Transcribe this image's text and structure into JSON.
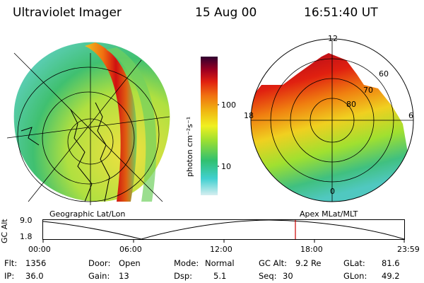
{
  "header": {
    "instrument": "Ultraviolet Imager",
    "date": "15 Aug 00",
    "time": "16:51:40 UT"
  },
  "colorbar": {
    "unit_label": "photon cm⁻²s⁻¹",
    "ticks": [
      "100",
      "10"
    ]
  },
  "polar_plot": {
    "mlt_labels": [
      "12",
      "18",
      "6",
      "0"
    ],
    "mlat_labels": [
      "60",
      "70",
      "80"
    ]
  },
  "timeline": {
    "ylabel": "GC Alt",
    "yticks": [
      "9.0",
      "1.8"
    ],
    "left_caption": "Geographic Lat/Lon",
    "right_caption": "Apex MLat/MLT",
    "xticks": [
      "00:00",
      "06:00",
      "12:00",
      "18:00",
      "23:59"
    ],
    "current_time_marker": "16:51:40"
  },
  "info": {
    "flt_label": "Flt:",
    "flt_value": "1356",
    "ip_label": "IP:",
    "ip_value": "36.0",
    "door_label": "Door:",
    "door_value": "Open",
    "gain_label": "Gain:",
    "gain_value": "13",
    "mode_label": "Mode:",
    "mode_value": "Normal",
    "dsp_label": "Dsp:",
    "dsp_value": "5.1",
    "gcalt_label": "GC Alt:",
    "gcalt_value": "9.2 Re",
    "seq_label": "Seq:",
    "seq_value": "30",
    "glat_label": "GLat:",
    "glat_value": "81.6",
    "glon_label": "GLon:",
    "glon_value": "49.2"
  },
  "colors": {
    "marker": "#cc0000",
    "palette": [
      "#d6eef0",
      "#40d0d0",
      "#30c070",
      "#a0e030",
      "#f0f020",
      "#f0b010",
      "#f07010",
      "#e02010",
      "#a00020",
      "#300030"
    ]
  }
}
